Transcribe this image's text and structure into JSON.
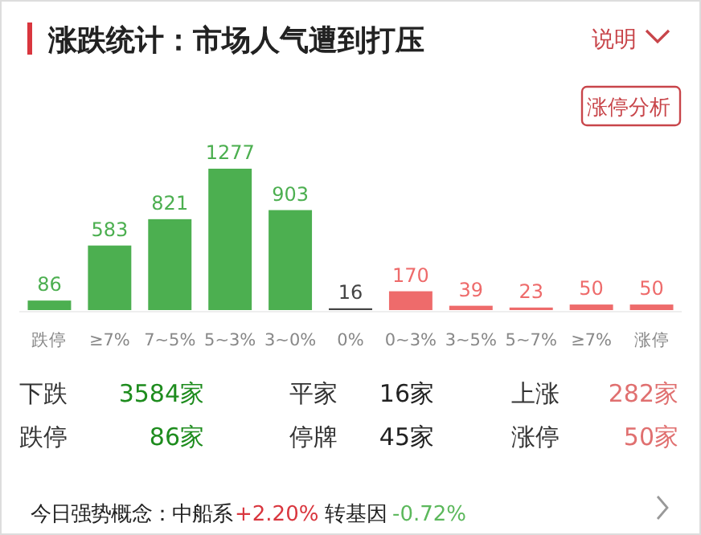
{
  "chart_data": {
    "type": "bar",
    "title": "涨跌统计：市场人气遭到打压",
    "categories": [
      "跌停",
      "≥7%",
      "7~5%",
      "5~3%",
      "3~0%",
      "0%",
      "0~3%",
      "3~5%",
      "5~7%",
      "≥7%",
      "涨停"
    ],
    "values": [
      86,
      583,
      821,
      1277,
      903,
      16,
      170,
      39,
      23,
      50,
      50
    ],
    "colors": [
      "#4caf50",
      "#4caf50",
      "#4caf50",
      "#4caf50",
      "#4caf50",
      "#444444",
      "#ee6b6b",
      "#ee6b6b",
      "#ee6b6b",
      "#ee6b6b",
      "#ee6b6b"
    ],
    "data_labels": true,
    "annotations": [
      "说明",
      "涨停分析",
      "下跌",
      "3584家",
      "平家",
      "16家",
      "上涨",
      "282家",
      "跌停",
      "86家",
      "停牌",
      "45家",
      "涨停",
      "50家",
      "今日强势概念：中船系",
      "+2.20%",
      "转基因",
      "-0.72%"
    ]
  }
}
